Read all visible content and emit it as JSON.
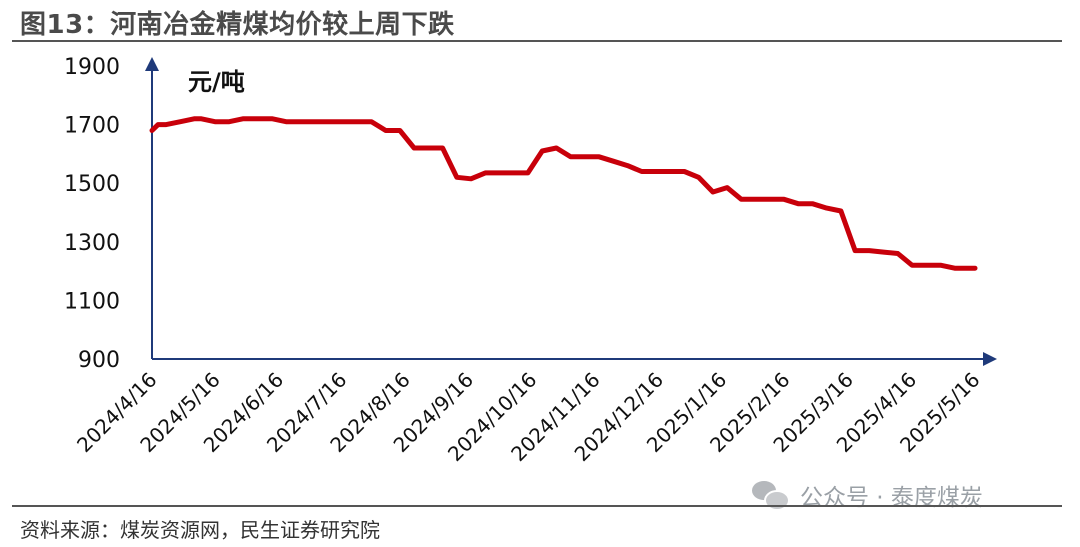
{
  "header": {
    "title": "图13：河南冶金精煤均价较上周下跌"
  },
  "footer": {
    "source": "资料来源：煤炭资源网，民生证券研究院"
  },
  "watermark": {
    "icon": "wechat-icon",
    "text": "公众号 · 泰度煤炭"
  },
  "colors": {
    "series": "#c8000a",
    "axis": "#1f3a7a"
  },
  "chart_data": {
    "type": "line",
    "title": "图13：河南冶金精煤均价较上周下跌",
    "unit_label": "元/吨",
    "ylim": [
      900,
      1900
    ],
    "y_ticks": [
      900,
      1100,
      1300,
      1500,
      1700,
      1900
    ],
    "x_ticks": [
      "2024/4/16",
      "2024/5/16",
      "2024/6/16",
      "2024/7/16",
      "2024/8/16",
      "2024/9/16",
      "2024/10/16",
      "2024/11/16",
      "2024/12/16",
      "2025/1/16",
      "2025/2/16",
      "2025/3/16",
      "2025/4/16",
      "2025/5/16"
    ],
    "xlim": [
      "2024-04-16",
      "2025-05-26"
    ],
    "grid": false,
    "legend": "none",
    "series": [
      {
        "x": [
          "2024-04-16",
          "2024-04-19",
          "2024-04-23",
          "2024-04-30",
          "2024-05-07",
          "2024-05-10",
          "2024-05-17",
          "2024-05-24",
          "2024-05-31",
          "2024-06-07",
          "2024-06-14",
          "2024-06-21",
          "2024-06-28",
          "2024-07-05",
          "2024-07-12",
          "2024-07-19",
          "2024-07-26",
          "2024-08-02",
          "2024-08-09",
          "2024-08-16",
          "2024-08-23",
          "2024-08-30",
          "2024-09-06",
          "2024-09-13",
          "2024-09-20",
          "2024-09-27",
          "2024-10-04",
          "2024-10-11",
          "2024-10-18",
          "2024-10-25",
          "2024-11-01",
          "2024-11-08",
          "2024-11-15",
          "2024-11-22",
          "2024-11-29",
          "2024-12-06",
          "2024-12-13",
          "2024-12-20",
          "2024-12-27",
          "2025-01-03",
          "2025-01-10",
          "2025-01-17",
          "2025-01-24",
          "2025-01-31",
          "2025-02-07",
          "2025-02-14",
          "2025-02-21",
          "2025-02-28",
          "2025-03-07",
          "2025-03-14",
          "2025-03-21",
          "2025-03-28",
          "2025-04-04",
          "2025-04-11",
          "2025-04-18",
          "2025-04-25",
          "2025-05-02",
          "2025-05-09",
          "2025-05-16",
          "2025-05-23",
          "2025-05-26"
        ],
        "y": [
          1680,
          1700,
          1700,
          1710,
          1720,
          1720,
          1710,
          1710,
          1720,
          1720,
          1720,
          1710,
          1710,
          1710,
          1710,
          1710,
          1710,
          1710,
          1680,
          1680,
          1620,
          1620,
          1620,
          1520,
          1515,
          1535,
          1535,
          1535,
          1535,
          1610,
          1620,
          1590,
          1590,
          1590,
          1575,
          1560,
          1540,
          1540,
          1540,
          1540,
          1520,
          1470,
          1485,
          1445,
          1445,
          1445,
          1445,
          1430,
          1430,
          1415,
          1405,
          1270,
          1270,
          1265,
          1260,
          1220,
          1220,
          1220,
          1210,
          1210,
          1210
        ]
      }
    ]
  }
}
